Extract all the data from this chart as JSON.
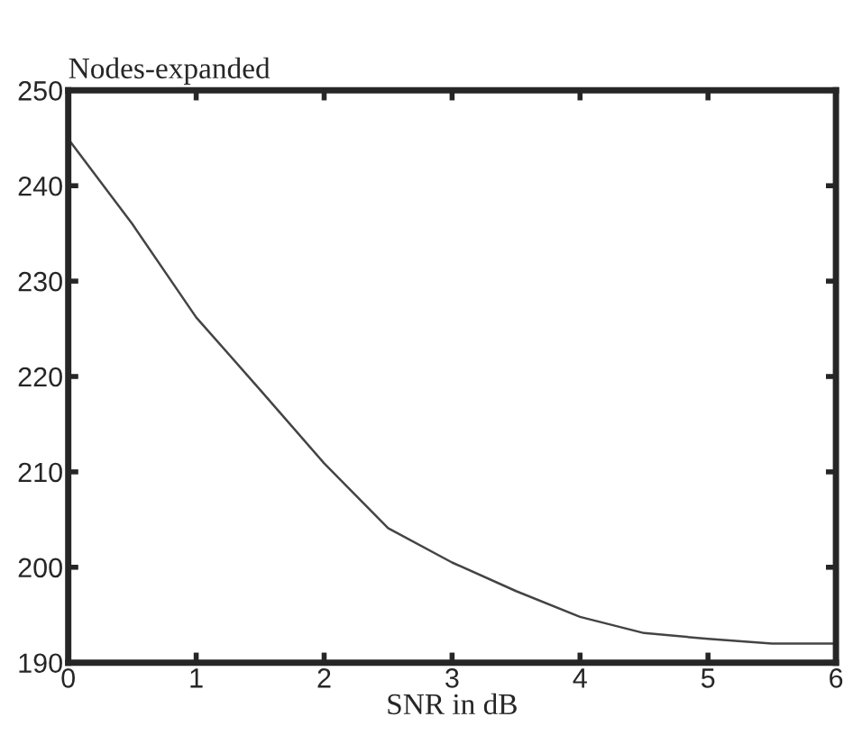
{
  "chart_data": {
    "type": "line",
    "ylabel": "Nodes-expanded",
    "xlabel": "SNR in dB",
    "x": [
      0,
      0.5,
      1,
      1.5,
      2,
      2.5,
      3,
      3.5,
      4,
      4.5,
      5,
      5.5,
      6
    ],
    "series": [
      {
        "color": "#444444",
        "values": [
          244.9,
          236,
          226.2,
          218.6,
          210.9,
          204.1,
          200.5,
          197.5,
          194.8,
          193.1,
          192.5,
          192,
          192
        ]
      }
    ],
    "xlim": [
      0,
      6
    ],
    "ylim": [
      190,
      250
    ],
    "xticks": [
      0,
      1,
      2,
      3,
      4,
      5,
      6
    ],
    "yticks": [
      190,
      200,
      210,
      220,
      230,
      240,
      250
    ],
    "grid": false,
    "legend": false
  }
}
